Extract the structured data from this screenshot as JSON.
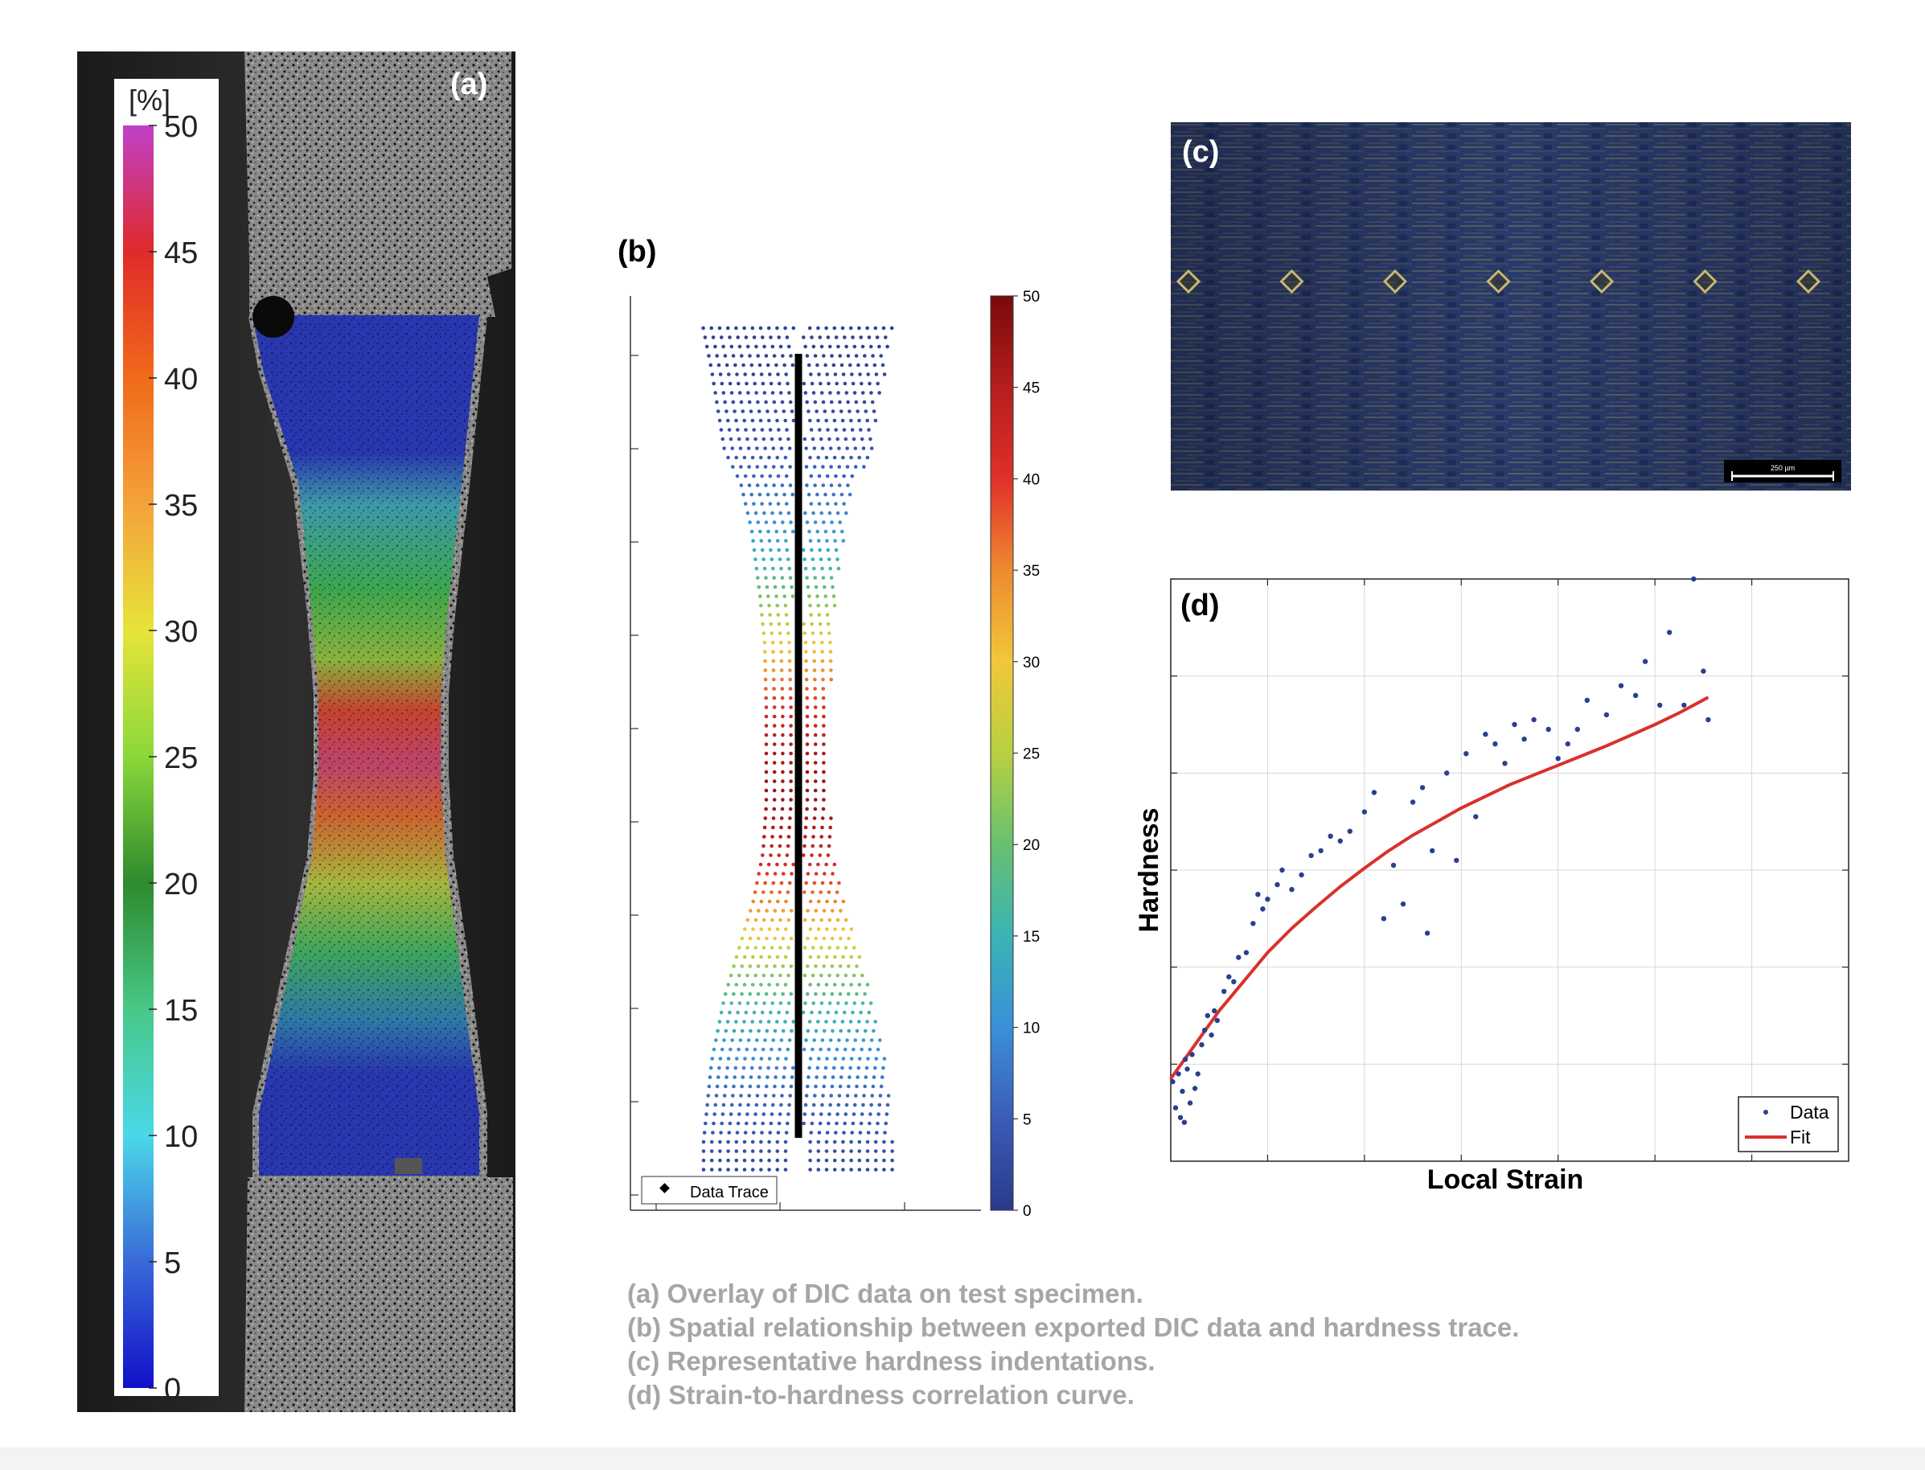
{
  "panel_a": {
    "label": "(a)",
    "colorbar_unit": "[%]",
    "colorbar_ticks": [
      "50",
      "45",
      "40",
      "35",
      "30",
      "25",
      "20",
      "15",
      "10",
      "5",
      "0"
    ]
  },
  "panel_b": {
    "label": "(b)",
    "colorbar_ticks": [
      "50",
      "45",
      "40",
      "35",
      "30",
      "25",
      "20",
      "15",
      "10",
      "5",
      "0"
    ],
    "legend_label": "Data Trace"
  },
  "panel_c": {
    "label": "(c)",
    "scalebar_label": "250 µm",
    "indent_count": 7
  },
  "panel_d": {
    "label": "(d)",
    "xlabel": "Local Strain",
    "ylabel": "Hardness",
    "legend": {
      "data": "Data",
      "fit": "Fit"
    }
  },
  "chart_data": {
    "type": "scatter",
    "title": "",
    "xlabel": "Local Strain",
    "ylabel": "Hardness",
    "xlim": [
      0,
      7
    ],
    "ylim": [
      0,
      6
    ],
    "grid": true,
    "legend_position": "bottom-right",
    "series": [
      {
        "name": "Data",
        "marker": "dot",
        "color": "#2b3f8f",
        "x": [
          0.02,
          0.05,
          0.08,
          0.1,
          0.12,
          0.14,
          0.15,
          0.17,
          0.2,
          0.22,
          0.25,
          0.28,
          0.32,
          0.35,
          0.38,
          0.42,
          0.45,
          0.48,
          0.55,
          0.6,
          0.65,
          0.7,
          0.78,
          0.85,
          0.9,
          0.95,
          1.0,
          1.1,
          1.15,
          1.25,
          1.35,
          1.45,
          1.55,
          1.65,
          1.75,
          1.85,
          2.0,
          2.1,
          2.2,
          2.3,
          2.4,
          2.5,
          2.6,
          2.65,
          2.7,
          2.85,
          2.95,
          3.05,
          3.15,
          3.25,
          3.35,
          3.45,
          3.55,
          3.65,
          3.75,
          3.9,
          4.0,
          4.1,
          4.2,
          4.3,
          4.5,
          4.65,
          4.8,
          4.9,
          5.05,
          5.15,
          5.3,
          5.4,
          5.5,
          5.55
        ],
        "y": [
          0.82,
          0.55,
          0.9,
          0.45,
          0.72,
          0.4,
          1.05,
          0.95,
          0.6,
          1.1,
          0.75,
          0.9,
          1.2,
          1.35,
          1.5,
          1.3,
          1.55,
          1.45,
          1.75,
          1.9,
          1.85,
          2.1,
          2.15,
          2.45,
          2.75,
          2.6,
          2.7,
          2.85,
          3.0,
          2.8,
          2.95,
          3.15,
          3.2,
          3.35,
          3.3,
          3.4,
          3.6,
          3.8,
          2.5,
          3.05,
          2.65,
          3.7,
          3.85,
          2.35,
          3.2,
          4.0,
          3.1,
          4.2,
          3.55,
          4.4,
          4.3,
          4.1,
          4.5,
          4.35,
          4.55,
          4.45,
          4.15,
          4.3,
          4.45,
          4.75,
          4.6,
          4.9,
          4.8,
          5.15,
          4.7,
          5.45,
          4.7,
          6.0,
          5.05,
          4.55
        ]
      },
      {
        "name": "Fit",
        "marker": "line",
        "color": "#d8322b",
        "x": [
          0,
          0.25,
          0.5,
          0.75,
          1,
          1.25,
          1.5,
          1.75,
          2,
          2.25,
          2.5,
          2.75,
          3,
          3.25,
          3.5,
          3.75,
          4,
          4.25,
          4.5,
          4.75,
          5,
          5.25,
          5.55
        ],
        "y": [
          0.85,
          1.2,
          1.55,
          1.85,
          2.15,
          2.4,
          2.62,
          2.83,
          3.02,
          3.2,
          3.36,
          3.5,
          3.64,
          3.76,
          3.88,
          3.98,
          4.08,
          4.18,
          4.28,
          4.39,
          4.5,
          4.62,
          4.78
        ]
      }
    ]
  },
  "caption": {
    "lines": [
      "(a) Overlay of DIC data on test specimen.",
      "(b) Spatial relationship between exported DIC data and hardness trace.",
      "(c) Representative hardness indentations.",
      "(d) Strain-to-hardness correlation curve."
    ]
  }
}
